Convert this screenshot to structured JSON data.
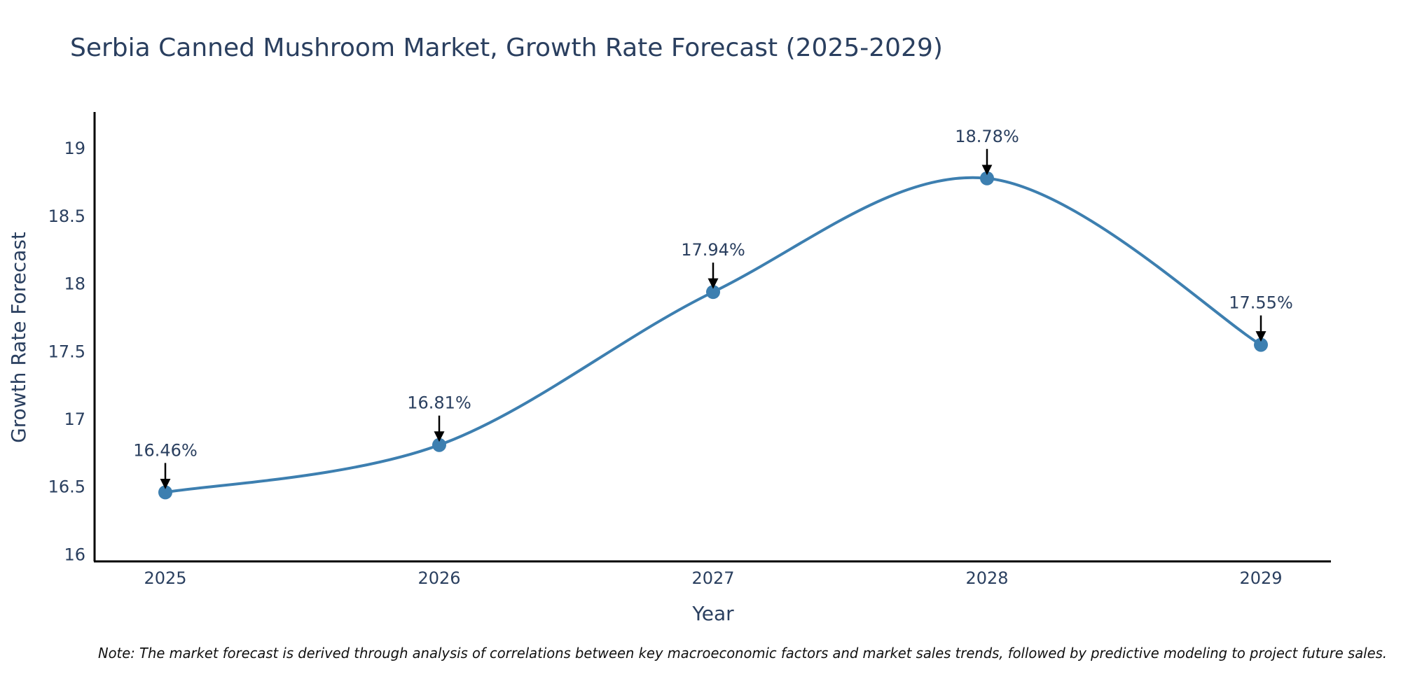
{
  "chart_data": {
    "type": "line",
    "title": "Serbia Canned Mushroom Market, Growth Rate Forecast (2025-2029)",
    "xlabel": "Year",
    "ylabel": "Growth Rate Forecast",
    "categories": [
      "2025",
      "2026",
      "2027",
      "2028",
      "2029"
    ],
    "values": [
      16.46,
      16.81,
      17.94,
      18.78,
      17.55
    ],
    "data_labels": [
      "16.46%",
      "16.81%",
      "17.94%",
      "18.78%",
      "17.55%"
    ],
    "y_ticks": [
      16,
      16.5,
      17,
      17.5,
      18,
      18.5,
      19
    ],
    "y_tick_labels": [
      "16",
      "16.5",
      "17",
      "17.5",
      "18",
      "18.5",
      "19"
    ],
    "ylim": [
      15.95,
      19.27
    ],
    "grid": false,
    "line_shape": "spline",
    "note": "Note: The market forecast is derived through analysis of correlations between key macroeconomic factors and market sales trends, followed by predictive modeling to project future sales."
  },
  "colors": {
    "line": "#3d7fb0",
    "marker": "#3d7fb0",
    "axis": "#000000",
    "text": "#2a3f5f",
    "arrow": "#000000",
    "background": "#ffffff"
  }
}
